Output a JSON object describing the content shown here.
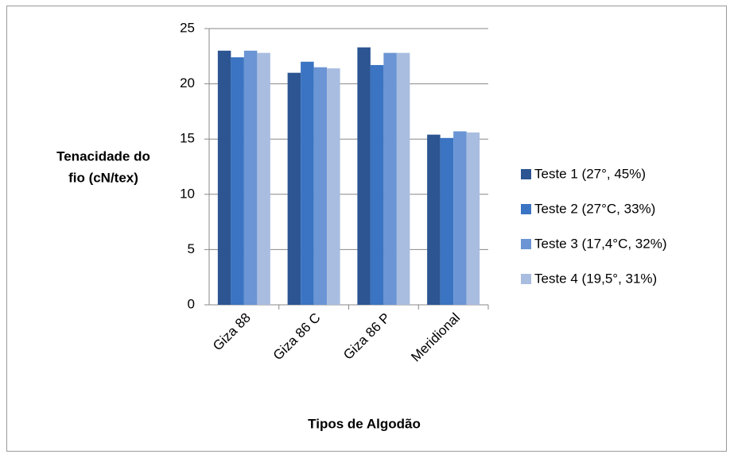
{
  "chart_data": {
    "type": "bar",
    "y_label": [
      "Tenacidade do",
      "fio (cN/tex)"
    ],
    "x_label": "Tipos de Algodão",
    "categories": [
      "Giza 88",
      "Giza 86 C",
      "Giza 86 P",
      "Meridional"
    ],
    "series": [
      {
        "name": "Teste 1 (27°, 45%)",
        "color": "#2c5592",
        "values": [
          23.0,
          21.0,
          23.3,
          15.4
        ]
      },
      {
        "name": "Teste 2 (27°C, 33%)",
        "color": "#3a74c2",
        "values": [
          22.4,
          22.0,
          21.7,
          15.1
        ]
      },
      {
        "name": "Teste 3 (17,4°C, 32%)",
        "color": "#6b95d4",
        "values": [
          23.0,
          21.5,
          22.8,
          15.7
        ]
      },
      {
        "name": "Teste 4 (19,5°, 31%)",
        "color": "#a9bde0",
        "values": [
          22.8,
          21.4,
          22.8,
          15.6
        ]
      }
    ],
    "ylim": [
      0,
      25
    ],
    "yticks": [
      0,
      5,
      10,
      15,
      20,
      25
    ],
    "grid": true,
    "legend": "right"
  }
}
